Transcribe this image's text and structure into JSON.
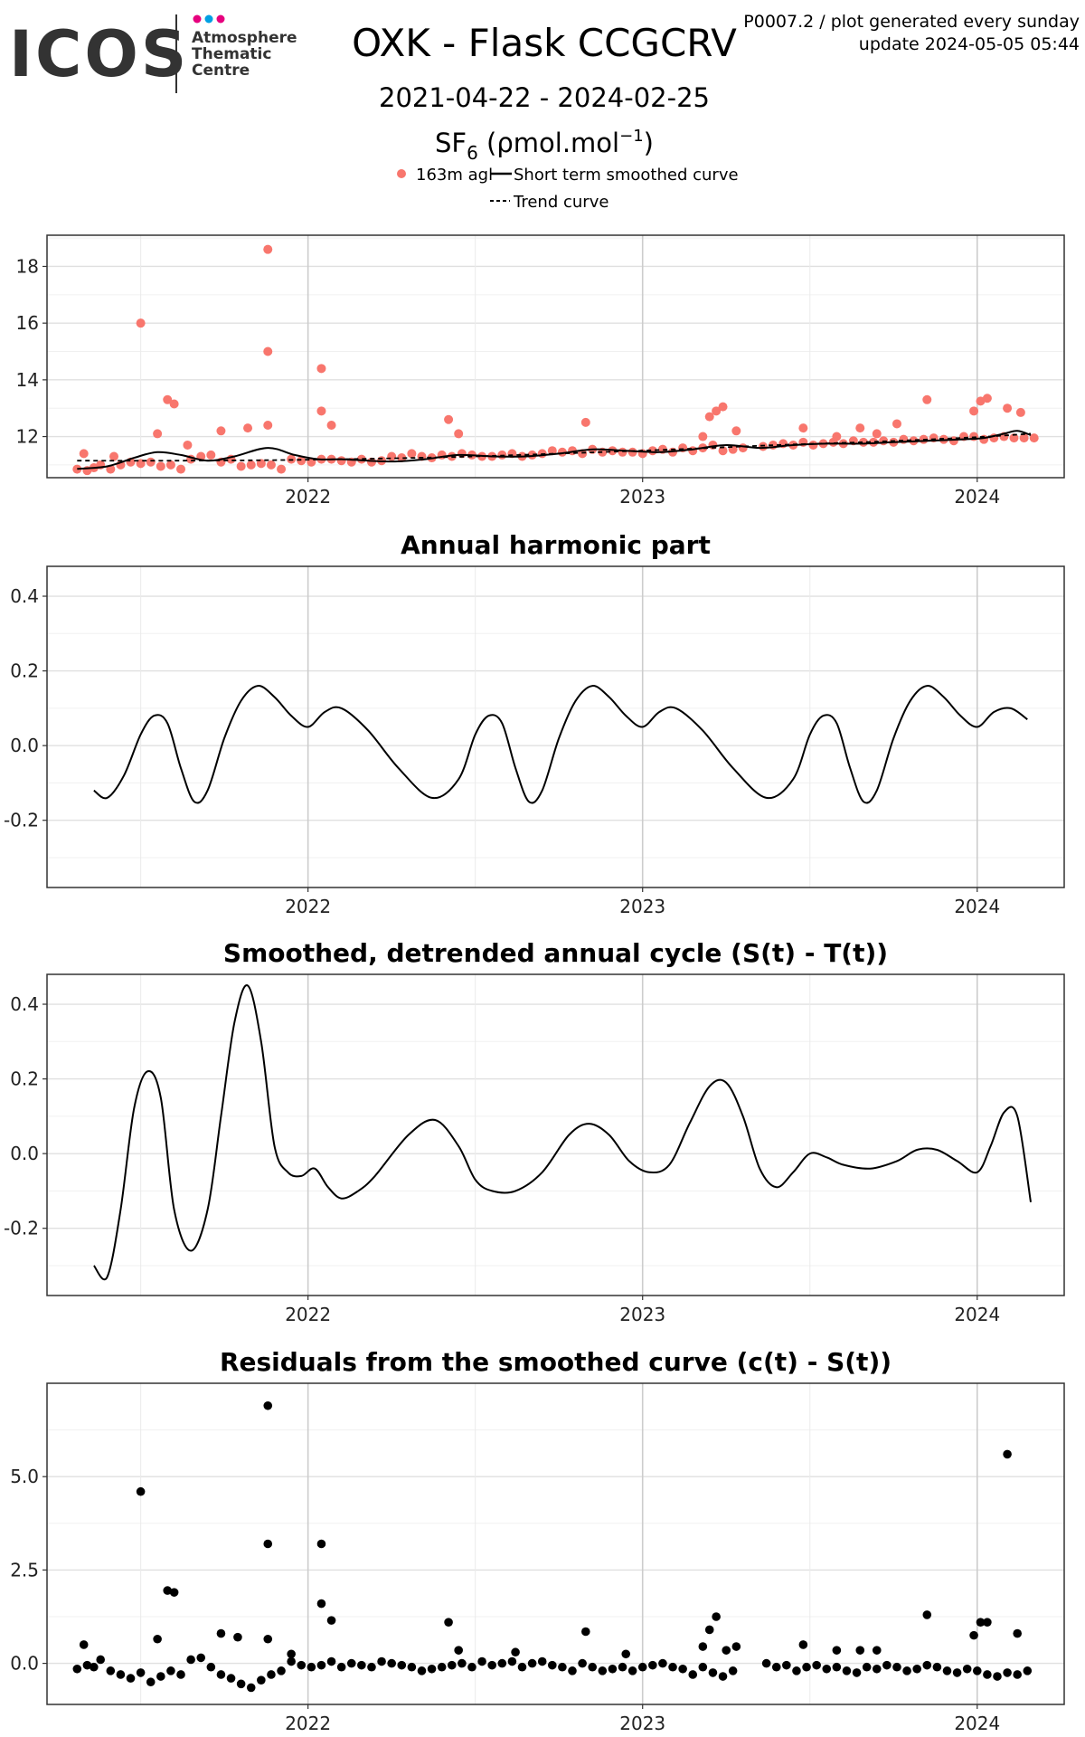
{
  "logo": {
    "wordmark": "ICOS",
    "lines": [
      "Atmosphere",
      "Thematic",
      "Centre"
    ],
    "dot_colors": [
      "#e6007e",
      "#009fe3",
      "#e6007e"
    ]
  },
  "header": {
    "title": "OXK - Flask CCGCRV",
    "date_range": "2021-04-22 - 2024-02-25",
    "species_main": "SF",
    "species_sub": "6",
    "units_prefix": " (ρmol.mol",
    "units_sup": "−1",
    "units_suffix": ")",
    "top_right_line1": "P0007.2 / plot generated every sunday",
    "top_right_line2": "update  2024-05-05 05:44"
  },
  "legend": {
    "items": [
      "163m agl",
      "Short term smoothed curve",
      "Trend curve"
    ]
  },
  "colors": {
    "points": "#f8766d",
    "line": "#000000",
    "grid_minor": "#ebebeb",
    "grid_major": "#cccccc"
  },
  "chart_data": [
    {
      "type": "scatter",
      "title": "",
      "xlim": [
        2021.22,
        2024.26
      ],
      "ylim": [
        10.55,
        19.1
      ],
      "x_ticks": [
        2022,
        2023,
        2024
      ],
      "x_tick_labels": [
        "2022",
        "2023",
        "2024"
      ],
      "y_ticks": [
        12,
        14,
        16,
        18
      ],
      "y_tick_labels": [
        "12",
        "14",
        "16",
        "18"
      ],
      "series": [
        {
          "name": "163m agl",
          "style": "points",
          "x": [
            2021.31,
            2021.34,
            2021.36,
            2021.38,
            2021.41,
            2021.44,
            2021.47,
            2021.5,
            2021.53,
            2021.56,
            2021.59,
            2021.62,
            2021.65,
            2021.68,
            2021.71,
            2021.74,
            2021.77,
            2021.8,
            2021.83,
            2021.86,
            2021.89,
            2021.92,
            2021.95,
            2021.98,
            2022.01,
            2022.04,
            2022.07,
            2022.1,
            2022.13,
            2022.16,
            2022.19,
            2022.22,
            2022.25,
            2022.28,
            2022.31,
            2022.34,
            2022.37,
            2022.4,
            2022.43,
            2022.46,
            2022.49,
            2022.52,
            2022.55,
            2022.58,
            2022.61,
            2022.64,
            2022.67,
            2022.7,
            2022.73,
            2022.76,
            2022.79,
            2022.82,
            2022.85,
            2022.88,
            2022.91,
            2022.94,
            2022.97,
            2023.0,
            2023.03,
            2023.06,
            2023.09,
            2023.12,
            2023.15,
            2023.18,
            2023.21,
            2023.24,
            2023.27,
            2023.3,
            2023.36,
            2023.39,
            2023.42,
            2023.45,
            2023.48,
            2023.51,
            2023.54,
            2023.57,
            2023.6,
            2023.63,
            2023.66,
            2023.69,
            2023.72,
            2023.75,
            2023.78,
            2023.81,
            2023.84,
            2023.87,
            2023.9,
            2023.93,
            2023.96,
            2023.99,
            2024.02,
            2024.05,
            2024.08,
            2024.11,
            2024.14,
            2024.17,
            2021.33,
            2021.42,
            2021.5,
            2021.55,
            2021.58,
            2021.6,
            2021.64,
            2021.74,
            2021.82,
            2021.88,
            2021.88,
            2021.88,
            2022.04,
            2022.04,
            2022.07,
            2022.42,
            2022.45,
            2022.83,
            2023.18,
            2023.2,
            2023.22,
            2023.24,
            2023.28,
            2023.48,
            2023.58,
            2023.65,
            2023.7,
            2023.76,
            2023.85,
            2023.99,
            2024.01,
            2024.03,
            2024.09,
            2024.13
          ],
          "y": [
            10.85,
            10.8,
            10.9,
            11.0,
            10.85,
            11.0,
            11.1,
            11.05,
            11.1,
            10.95,
            11.0,
            10.85,
            11.2,
            11.3,
            11.35,
            11.1,
            11.2,
            10.95,
            11.0,
            11.05,
            11.0,
            10.85,
            11.2,
            11.15,
            11.1,
            11.2,
            11.2,
            11.15,
            11.1,
            11.2,
            11.1,
            11.15,
            11.3,
            11.25,
            11.4,
            11.3,
            11.25,
            11.35,
            11.3,
            11.4,
            11.35,
            11.3,
            11.3,
            11.35,
            11.4,
            11.3,
            11.35,
            11.4,
            11.5,
            11.45,
            11.5,
            11.4,
            11.55,
            11.45,
            11.5,
            11.45,
            11.45,
            11.4,
            11.5,
            11.55,
            11.45,
            11.6,
            11.5,
            11.6,
            11.7,
            11.5,
            11.55,
            11.6,
            11.65,
            11.7,
            11.75,
            11.7,
            11.8,
            11.7,
            11.75,
            11.8,
            11.75,
            11.85,
            11.8,
            11.8,
            11.85,
            11.8,
            11.9,
            11.85,
            11.9,
            11.95,
            11.9,
            11.85,
            12.0,
            12.0,
            11.9,
            11.95,
            12.0,
            11.95,
            11.95,
            11.95,
            11.4,
            11.3,
            16.0,
            12.1,
            13.3,
            13.15,
            11.7,
            12.2,
            12.3,
            18.6,
            15.0,
            12.4,
            14.4,
            12.9,
            12.4,
            12.6,
            12.1,
            12.5,
            12.0,
            12.7,
            12.9,
            13.05,
            12.2,
            12.3,
            12.0,
            12.3,
            12.1,
            12.45,
            13.3,
            12.9,
            13.25,
            13.35,
            13.0,
            12.85
          ]
        },
        {
          "name": "Short term smoothed curve",
          "style": "line",
          "x": [
            2021.31,
            2021.4,
            2021.48,
            2021.55,
            2021.62,
            2021.7,
            2021.78,
            2021.88,
            2021.96,
            2022.03,
            2022.1,
            2022.18,
            2022.26,
            2022.35,
            2022.45,
            2022.55,
            2022.65,
            2022.75,
            2022.85,
            2022.95,
            2023.05,
            2023.15,
            2023.25,
            2023.35,
            2023.45,
            2023.55,
            2023.65,
            2023.75,
            2023.85,
            2023.95,
            2024.02,
            2024.08,
            2024.12,
            2024.16
          ],
          "y": [
            10.86,
            10.95,
            11.25,
            11.45,
            11.35,
            11.15,
            11.3,
            11.6,
            11.35,
            11.2,
            11.2,
            11.15,
            11.12,
            11.2,
            11.35,
            11.3,
            11.3,
            11.4,
            11.55,
            11.5,
            11.45,
            11.55,
            11.7,
            11.6,
            11.7,
            11.75,
            11.75,
            11.8,
            11.85,
            11.9,
            11.95,
            12.1,
            12.2,
            12.05
          ]
        },
        {
          "name": "Trend curve",
          "style": "dashed",
          "x": [
            2021.31,
            2021.6,
            2021.9,
            2022.2,
            2022.5,
            2022.8,
            2023.1,
            2023.4,
            2023.7,
            2024.0,
            2024.16
          ],
          "y": [
            11.15,
            11.15,
            11.17,
            11.22,
            11.3,
            11.42,
            11.55,
            11.7,
            11.82,
            11.98,
            12.1
          ]
        }
      ]
    },
    {
      "type": "line",
      "title": "Annual harmonic part",
      "xlim": [
        2021.22,
        2024.26
      ],
      "ylim": [
        -0.38,
        0.48
      ],
      "x_ticks": [
        2022,
        2023,
        2024
      ],
      "x_tick_labels": [
        "2022",
        "2023",
        "2024"
      ],
      "y_ticks": [
        -0.2,
        0.0,
        0.2,
        0.4
      ],
      "y_tick_labels": [
        "-0.2",
        "0.0",
        "0.2",
        "0.4"
      ],
      "series": [
        {
          "style": "line",
          "x": [
            2021.36,
            2021.4,
            2021.45,
            2021.5,
            2021.54,
            2021.58,
            2021.62,
            2021.66,
            2021.7,
            2021.75,
            2021.8,
            2021.85,
            2021.9,
            2021.95,
            2022.0,
            2022.05,
            2022.1,
            2022.18,
            2022.27,
            2022.37,
            2022.45,
            2022.5,
            2022.54,
            2022.58,
            2022.62,
            2022.66,
            2022.7,
            2022.75,
            2022.8,
            2022.85,
            2022.9,
            2022.95,
            2023.0,
            2023.05,
            2023.1,
            2023.18,
            2023.27,
            2023.37,
            2023.45,
            2023.5,
            2023.54,
            2023.58,
            2023.62,
            2023.66,
            2023.7,
            2023.75,
            2023.8,
            2023.85,
            2023.9,
            2023.95,
            2024.0,
            2024.05,
            2024.1,
            2024.15
          ],
          "y": [
            -0.12,
            -0.14,
            -0.08,
            0.03,
            0.08,
            0.06,
            -0.06,
            -0.15,
            -0.12,
            0.02,
            0.12,
            0.16,
            0.13,
            0.08,
            0.05,
            0.09,
            0.1,
            0.04,
            -0.06,
            -0.14,
            -0.09,
            0.03,
            0.08,
            0.06,
            -0.06,
            -0.15,
            -0.12,
            0.02,
            0.12,
            0.16,
            0.13,
            0.08,
            0.05,
            0.09,
            0.1,
            0.04,
            -0.06,
            -0.14,
            -0.09,
            0.03,
            0.08,
            0.06,
            -0.06,
            -0.15,
            -0.12,
            0.02,
            0.12,
            0.16,
            0.13,
            0.08,
            0.05,
            0.09,
            0.1,
            0.07
          ]
        }
      ]
    },
    {
      "type": "line",
      "title": "Smoothed, detrended annual cycle (S(t) - T(t))",
      "xlim": [
        2021.22,
        2024.26
      ],
      "ylim": [
        -0.38,
        0.48
      ],
      "x_ticks": [
        2022,
        2023,
        2024
      ],
      "x_tick_labels": [
        "2022",
        "2023",
        "2024"
      ],
      "y_ticks": [
        -0.2,
        0.0,
        0.2,
        0.4
      ],
      "y_tick_labels": [
        "-0.2",
        "0.0",
        "0.2",
        "0.4"
      ],
      "series": [
        {
          "style": "line",
          "x": [
            2021.36,
            2021.4,
            2021.44,
            2021.48,
            2021.52,
            2021.56,
            2021.6,
            2021.65,
            2021.7,
            2021.74,
            2021.78,
            2021.82,
            2021.86,
            2021.9,
            2021.94,
            2021.98,
            2022.02,
            2022.06,
            2022.1,
            2022.15,
            2022.2,
            2022.3,
            2022.38,
            2022.45,
            2022.5,
            2022.55,
            2022.62,
            2022.7,
            2022.78,
            2022.84,
            2022.9,
            2022.96,
            2023.02,
            2023.08,
            2023.14,
            2023.2,
            2023.25,
            2023.3,
            2023.35,
            2023.4,
            2023.45,
            2023.5,
            2023.55,
            2023.6,
            2023.68,
            2023.76,
            2023.82,
            2023.88,
            2023.94,
            2024.0,
            2024.04,
            2024.08,
            2024.12,
            2024.16
          ],
          "y": [
            -0.3,
            -0.33,
            -0.15,
            0.12,
            0.22,
            0.15,
            -0.15,
            -0.26,
            -0.15,
            0.1,
            0.35,
            0.45,
            0.3,
            0.02,
            -0.05,
            -0.06,
            -0.04,
            -0.09,
            -0.12,
            -0.1,
            -0.06,
            0.05,
            0.09,
            0.02,
            -0.07,
            -0.1,
            -0.1,
            -0.05,
            0.05,
            0.08,
            0.05,
            -0.02,
            -0.05,
            -0.03,
            0.08,
            0.18,
            0.19,
            0.1,
            -0.04,
            -0.09,
            -0.05,
            0.0,
            -0.01,
            -0.03,
            -0.04,
            -0.02,
            0.01,
            0.01,
            -0.02,
            -0.05,
            0.02,
            0.11,
            0.1,
            -0.13
          ]
        }
      ]
    },
    {
      "type": "scatter",
      "title": "Residuals from the smoothed curve (c(t) - S(t))",
      "xlim": [
        2021.22,
        2024.26
      ],
      "ylim": [
        -1.1,
        7.5
      ],
      "x_ticks": [
        2022,
        2023,
        2024
      ],
      "x_tick_labels": [
        "2022",
        "2023",
        "2024"
      ],
      "y_ticks": [
        0.0,
        2.5,
        5.0
      ],
      "y_tick_labels": [
        "0.0",
        "2.5",
        "5.0"
      ],
      "series": [
        {
          "style": "points",
          "x": [
            2021.31,
            2021.34,
            2021.36,
            2021.38,
            2021.41,
            2021.44,
            2021.47,
            2021.5,
            2021.53,
            2021.56,
            2021.59,
            2021.62,
            2021.65,
            2021.68,
            2021.71,
            2021.74,
            2021.77,
            2021.8,
            2021.83,
            2021.86,
            2021.89,
            2021.92,
            2021.95,
            2021.98,
            2022.01,
            2022.04,
            2022.07,
            2022.1,
            2022.13,
            2022.16,
            2022.19,
            2022.22,
            2022.25,
            2022.28,
            2022.31,
            2022.34,
            2022.37,
            2022.4,
            2022.43,
            2022.46,
            2022.49,
            2022.52,
            2022.55,
            2022.58,
            2022.61,
            2022.64,
            2022.67,
            2022.7,
            2022.73,
            2022.76,
            2022.79,
            2022.82,
            2022.85,
            2022.88,
            2022.91,
            2022.94,
            2022.97,
            2023.0,
            2023.03,
            2023.06,
            2023.09,
            2023.12,
            2023.15,
            2023.18,
            2023.21,
            2023.24,
            2023.27,
            2023.37,
            2023.4,
            2023.43,
            2023.46,
            2023.49,
            2023.52,
            2023.55,
            2023.58,
            2023.61,
            2023.64,
            2023.67,
            2023.7,
            2023.73,
            2023.76,
            2023.79,
            2023.82,
            2023.85,
            2023.88,
            2023.91,
            2023.94,
            2023.97,
            2024.0,
            2024.03,
            2024.06,
            2024.09,
            2024.12,
            2024.15,
            2021.33,
            2021.5,
            2021.58,
            2021.6,
            2021.55,
            2021.74,
            2021.79,
            2021.88,
            2021.88,
            2021.88,
            2022.04,
            2022.04,
            2022.07,
            2022.42,
            2022.45,
            2022.83,
            2023.18,
            2023.2,
            2023.22,
            2023.28,
            2023.48,
            2023.58,
            2023.65,
            2023.7,
            2023.85,
            2023.99,
            2024.01,
            2024.03,
            2024.09,
            2024.12,
            2021.95,
            2022.62,
            2022.95,
            2023.25
          ],
          "y": [
            -0.15,
            -0.05,
            -0.1,
            0.1,
            -0.2,
            -0.3,
            -0.4,
            -0.25,
            -0.5,
            -0.35,
            -0.2,
            -0.3,
            0.1,
            0.15,
            -0.1,
            -0.3,
            -0.4,
            -0.55,
            -0.65,
            -0.45,
            -0.3,
            -0.2,
            0.05,
            -0.05,
            -0.1,
            -0.05,
            0.05,
            -0.1,
            0.0,
            -0.05,
            -0.1,
            0.05,
            0.0,
            -0.05,
            -0.1,
            -0.2,
            -0.15,
            -0.1,
            -0.05,
            0.0,
            -0.1,
            0.05,
            -0.05,
            0.0,
            0.05,
            -0.1,
            0.0,
            0.05,
            -0.05,
            -0.1,
            -0.2,
            0.0,
            -0.1,
            -0.2,
            -0.15,
            -0.1,
            -0.2,
            -0.1,
            -0.05,
            0.0,
            -0.1,
            -0.15,
            -0.3,
            -0.1,
            -0.25,
            -0.35,
            -0.2,
            0.0,
            -0.1,
            -0.05,
            -0.2,
            -0.1,
            -0.05,
            -0.15,
            -0.1,
            -0.2,
            -0.25,
            -0.1,
            -0.15,
            -0.05,
            -0.1,
            -0.2,
            -0.15,
            -0.05,
            -0.1,
            -0.2,
            -0.25,
            -0.15,
            -0.2,
            -0.3,
            -0.35,
            -0.25,
            -0.3,
            -0.2,
            0.5,
            4.6,
            1.95,
            1.9,
            0.65,
            0.8,
            0.7,
            6.9,
            3.2,
            0.65,
            3.2,
            1.6,
            1.15,
            1.1,
            0.35,
            0.85,
            0.45,
            0.9,
            1.25,
            0.45,
            0.5,
            0.35,
            0.35,
            0.35,
            1.3,
            0.75,
            1.1,
            1.1,
            5.6,
            0.8,
            0.25,
            0.3,
            0.25,
            0.35
          ]
        }
      ]
    }
  ]
}
